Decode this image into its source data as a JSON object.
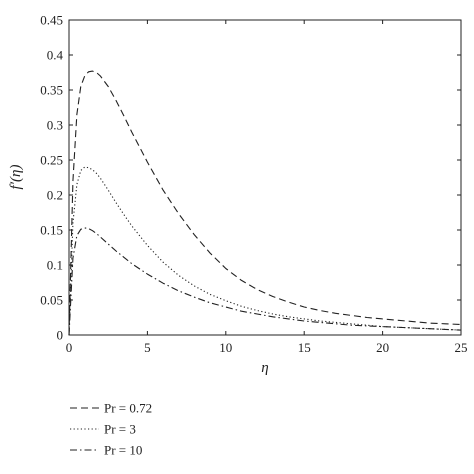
{
  "chart_data": {
    "type": "line",
    "title": "",
    "xlabel": "η",
    "ylabel": "f′(η)",
    "xlim": [
      0,
      25
    ],
    "ylim": [
      0,
      0.45
    ],
    "xticks": [
      0,
      5,
      10,
      15,
      20,
      25
    ],
    "yticks": [
      0,
      0.05,
      0.1,
      0.15,
      0.2,
      0.25,
      0.3,
      0.35,
      0.4,
      0.45
    ],
    "xtick_labels": [
      "0",
      "5",
      "10",
      "15",
      "20",
      "25"
    ],
    "ytick_labels": [
      "0",
      "0.05",
      "0.1",
      "0.15",
      "0.2",
      "0.25",
      "0.3",
      "0.35",
      "0.4",
      "0.45"
    ],
    "grid": false,
    "legend_position": "below plot",
    "series": [
      {
        "name": "Pr = 0.72",
        "style": "dashed",
        "color": "#222222",
        "x": [
          0,
          0.25,
          0.5,
          0.75,
          1,
          1.25,
          1.5,
          1.75,
          2,
          2.5,
          3,
          3.5,
          4,
          5,
          6,
          7,
          8,
          9,
          10,
          11,
          12,
          13,
          14,
          15,
          16,
          17,
          18,
          19,
          20,
          21,
          22,
          23,
          24,
          25
        ],
        "values": [
          0,
          0.22,
          0.315,
          0.355,
          0.37,
          0.376,
          0.377,
          0.375,
          0.37,
          0.355,
          0.335,
          0.313,
          0.29,
          0.247,
          0.207,
          0.173,
          0.143,
          0.117,
          0.095,
          0.078,
          0.065,
          0.055,
          0.047,
          0.04,
          0.035,
          0.031,
          0.028,
          0.025,
          0.023,
          0.021,
          0.019,
          0.017,
          0.016,
          0.015
        ]
      },
      {
        "name": "Pr = 3",
        "style": "dotted",
        "color": "#222222",
        "x": [
          0,
          0.25,
          0.5,
          0.75,
          1,
          1.25,
          1.5,
          1.75,
          2,
          2.5,
          3,
          3.5,
          4,
          5,
          6,
          7,
          8,
          9,
          10,
          11,
          12,
          13,
          14,
          15,
          16,
          17,
          18,
          19,
          20,
          21,
          22,
          23,
          24,
          25
        ],
        "values": [
          0,
          0.16,
          0.215,
          0.235,
          0.24,
          0.239,
          0.236,
          0.231,
          0.224,
          0.207,
          0.189,
          0.172,
          0.156,
          0.128,
          0.104,
          0.085,
          0.07,
          0.058,
          0.049,
          0.041,
          0.035,
          0.03,
          0.026,
          0.023,
          0.02,
          0.018,
          0.016,
          0.014,
          0.012,
          0.011,
          0.01,
          0.009,
          0.008,
          0.007
        ]
      },
      {
        "name": "Pr = 10",
        "style": "dashdot",
        "color": "#222222",
        "x": [
          0,
          0.25,
          0.5,
          0.75,
          1,
          1.25,
          1.5,
          1.75,
          2,
          2.5,
          3,
          3.5,
          4,
          5,
          6,
          7,
          8,
          9,
          10,
          11,
          12,
          13,
          14,
          15,
          16,
          17,
          18,
          19,
          20,
          21,
          22,
          23,
          24,
          25
        ],
        "values": [
          0,
          0.11,
          0.142,
          0.151,
          0.153,
          0.152,
          0.149,
          0.145,
          0.14,
          0.13,
          0.12,
          0.111,
          0.102,
          0.087,
          0.074,
          0.063,
          0.054,
          0.046,
          0.04,
          0.034,
          0.03,
          0.026,
          0.023,
          0.02,
          0.018,
          0.016,
          0.014,
          0.013,
          0.012,
          0.011,
          0.01,
          0.009,
          0.008,
          0.007
        ]
      }
    ]
  }
}
